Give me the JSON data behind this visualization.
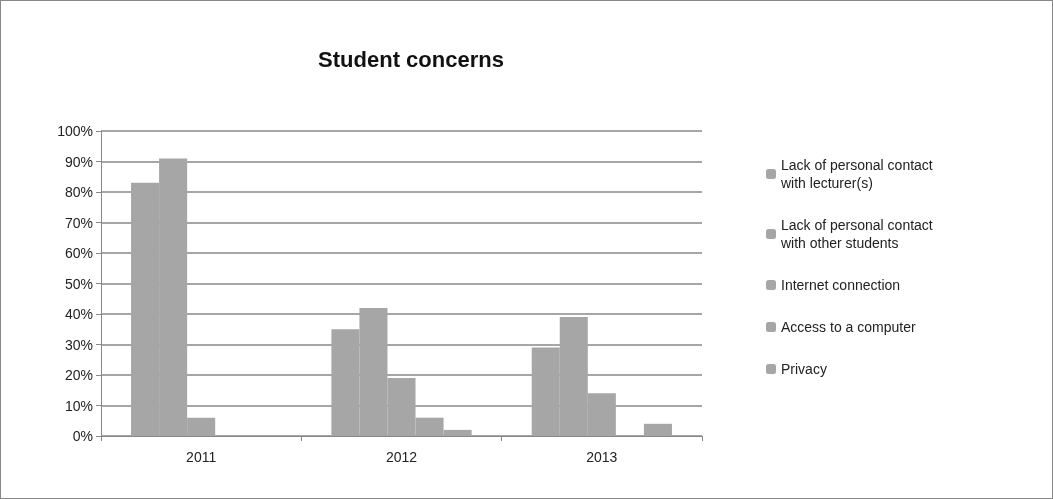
{
  "chart_data": {
    "type": "bar",
    "title": "Student concerns",
    "categories": [
      "2011",
      "2012",
      "2013"
    ],
    "series": [
      {
        "name": "Lack of personal contact with lecturer(s)",
        "color": "#a6a6a6",
        "values": [
          83,
          35,
          29
        ]
      },
      {
        "name": "Lack of personal contact with other students",
        "color": "#a6a6a6",
        "values": [
          91,
          42,
          39
        ]
      },
      {
        "name": "Internet connection",
        "color": "#a6a6a6",
        "values": [
          6,
          19,
          14
        ]
      },
      {
        "name": "Access to a computer",
        "color": "#a6a6a6",
        "values": [
          0,
          6,
          0
        ]
      },
      {
        "name": "Privacy",
        "color": "#a6a6a6",
        "values": [
          0,
          2,
          4
        ]
      }
    ],
    "ylim": [
      0,
      100
    ],
    "yticks": [
      {
        "value": 0,
        "label": "0%"
      },
      {
        "value": 10,
        "label": "10%"
      },
      {
        "value": 20,
        "label": "20%"
      },
      {
        "value": 30,
        "label": "30%"
      },
      {
        "value": 40,
        "label": "40%"
      },
      {
        "value": 50,
        "label": "50%"
      },
      {
        "value": 60,
        "label": "60%"
      },
      {
        "value": 70,
        "label": "70%"
      },
      {
        "value": 80,
        "label": "80%"
      },
      {
        "value": 90,
        "label": "90%"
      },
      {
        "value": 100,
        "label": "100%"
      }
    ],
    "grid": "y",
    "legend": "right"
  }
}
